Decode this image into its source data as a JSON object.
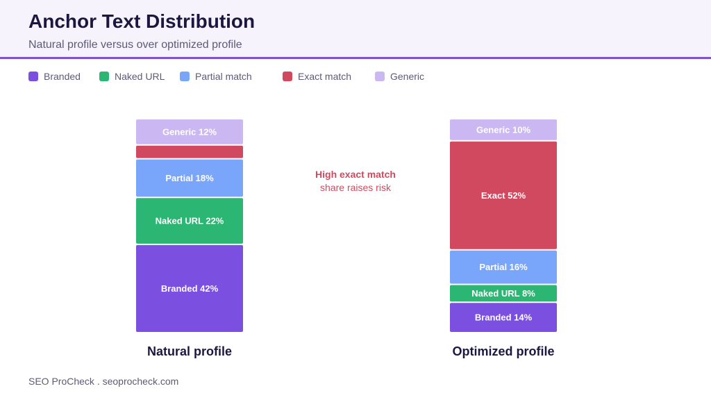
{
  "header": {
    "title": "Anchor Text Distribution",
    "subtitle": "Natural profile versus over optimized profile"
  },
  "legend": [
    {
      "label": "Branded",
      "color": "#7b4fe0"
    },
    {
      "label": "Naked URL",
      "color": "#2bb673"
    },
    {
      "label": "Partial match",
      "color": "#79a6fb"
    },
    {
      "label": "Exact match",
      "color": "#d1495e"
    },
    {
      "label": "Generic",
      "color": "#cbb8f2"
    }
  ],
  "annotation": {
    "line1": "High exact match",
    "line2": "share raises risk",
    "color": "#d1495e"
  },
  "footer": "SEO ProCheck . seoprocheck.com",
  "chart_data": {
    "type": "bar",
    "stacked": true,
    "unit": "%",
    "categories": [
      "Natural profile",
      "Optimized profile"
    ],
    "series": [
      {
        "name": "Branded",
        "color": "#7b4fe0",
        "values": [
          42,
          14
        ],
        "labels": [
          "Branded 42%",
          "Branded 14%"
        ]
      },
      {
        "name": "Naked URL",
        "color": "#2bb673",
        "values": [
          22,
          8
        ],
        "labels": [
          "Naked URL 22%",
          "Naked URL 8%"
        ]
      },
      {
        "name": "Partial match",
        "color": "#79a6fb",
        "values": [
          18,
          16
        ],
        "labels": [
          "Partial 18%",
          "Partial 16%"
        ]
      },
      {
        "name": "Exact match",
        "color": "#d1495e",
        "values": [
          6,
          52
        ],
        "labels": [
          "",
          "Exact 52%"
        ]
      },
      {
        "name": "Generic",
        "color": "#cbb8f2",
        "values": [
          12,
          10
        ],
        "labels": [
          "Generic 12%",
          "Generic 10%"
        ]
      }
    ],
    "ylim": [
      0,
      100
    ],
    "grid": false,
    "legend_position": "top-left"
  }
}
